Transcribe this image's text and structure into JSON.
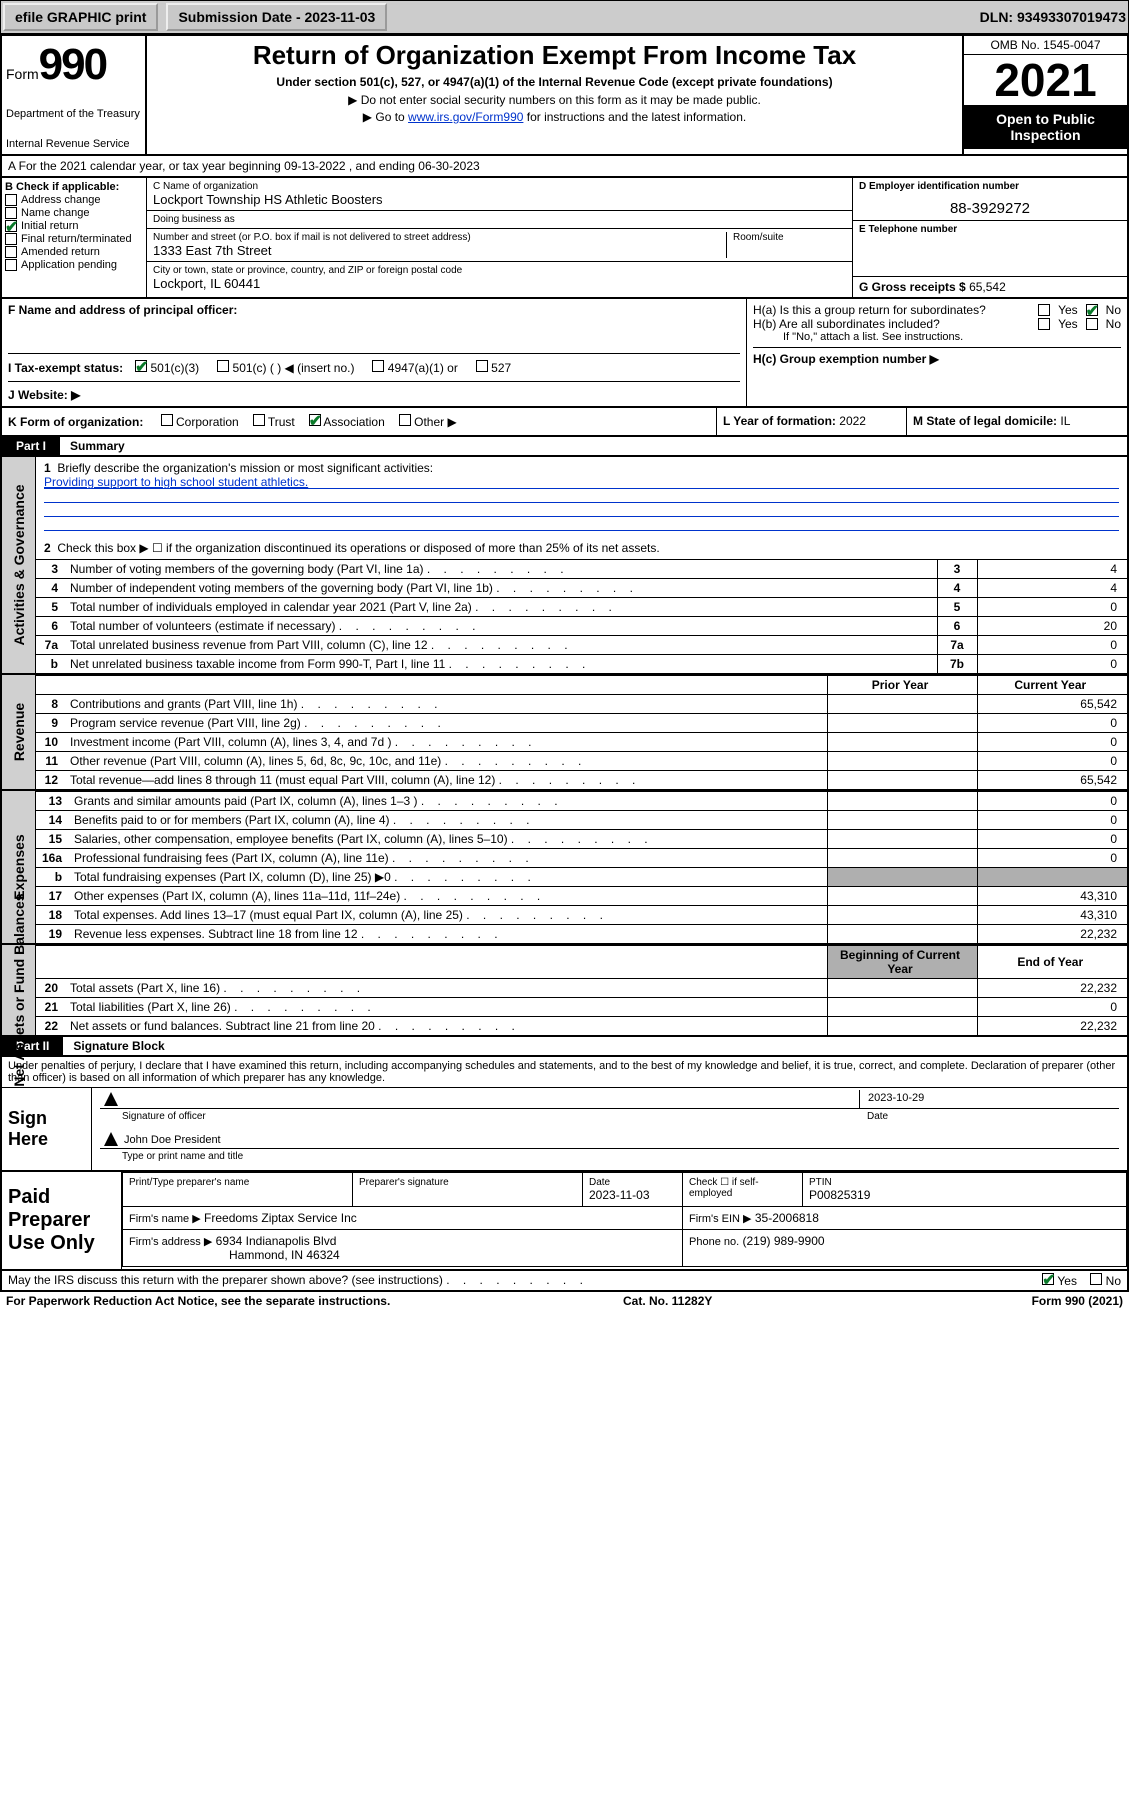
{
  "topbar": {
    "efile": "efile GRAPHIC print",
    "submission_label": "Submission Date - 2023-11-03",
    "dln": "DLN: 93493307019473"
  },
  "header": {
    "form_word": "Form",
    "form_num": "990",
    "dept": "Department of the Treasury",
    "irs": "Internal Revenue Service",
    "title": "Return of Organization Exempt From Income Tax",
    "sub": "Under section 501(c), 527, or 4947(a)(1) of the Internal Revenue Code (except private foundations)",
    "line1": "▶ Do not enter social security numbers on this form as it may be made public.",
    "line2_pre": "▶ Go to ",
    "line2_link": "www.irs.gov/Form990",
    "line2_post": " for instructions and the latest information.",
    "omb": "OMB No. 1545-0047",
    "year": "2021",
    "open": "Open to Public Inspection"
  },
  "line_a": "A For the 2021 calendar year, or tax year beginning 09-13-2022    , and ending 06-30-2023",
  "box_b": {
    "label": "B Check if applicable:",
    "items": [
      {
        "label": "Address change",
        "checked": false
      },
      {
        "label": "Name change",
        "checked": false
      },
      {
        "label": "Initial return",
        "checked": true
      },
      {
        "label": "Final return/terminated",
        "checked": false
      },
      {
        "label": "Amended return",
        "checked": false
      },
      {
        "label": "Application pending",
        "checked": false
      }
    ]
  },
  "box_c": {
    "name_label": "C Name of organization",
    "name": "Lockport Township HS Athletic Boosters",
    "dba_label": "Doing business as",
    "dba": "",
    "street_label": "Number and street (or P.O. box if mail is not delivered to street address)",
    "room_label": "Room/suite",
    "street": "1333 East 7th Street",
    "city_label": "City or town, state or province, country, and ZIP or foreign postal code",
    "city": "Lockport, IL  60441"
  },
  "box_d": {
    "label": "D Employer identification number",
    "value": "88-3929272"
  },
  "box_e": {
    "label": "E Telephone number",
    "value": ""
  },
  "box_g": {
    "label": "G Gross receipts $",
    "value": "65,542"
  },
  "box_f": {
    "label": "F Name and address of principal officer:",
    "value": ""
  },
  "box_h": {
    "ha": "H(a)  Is this a group return for subordinates?",
    "ha_yes": "Yes",
    "ha_no": "No",
    "ha_checked": "No",
    "hb": "H(b)  Are all subordinates included?",
    "hb_yes": "Yes",
    "hb_no": "No",
    "hb_note": "If \"No,\" attach a list. See instructions.",
    "hc": "H(c)  Group exemption number ▶"
  },
  "box_i": {
    "label": "I   Tax-exempt status:",
    "opts": [
      "501(c)(3)",
      "501(c) (  ) ◀ (insert no.)",
      "4947(a)(1) or",
      "527"
    ],
    "checked_index": 0
  },
  "box_j": {
    "label": "J   Website: ▶",
    "value": ""
  },
  "box_k": {
    "label": "K Form of organization:",
    "opts": [
      "Corporation",
      "Trust",
      "Association",
      "Other ▶"
    ],
    "checked_index": 2
  },
  "box_l": {
    "label": "L Year of formation:",
    "value": "2022"
  },
  "box_m": {
    "label": "M State of legal domicile:",
    "value": "IL"
  },
  "part1": {
    "header": "Part I",
    "title": "Summary",
    "q1_label": "Briefly describe the organization's mission or most significant activities:",
    "q1_text": "Providing support to high school student athletics.",
    "q2": "Check this box ▶ ☐  if the organization discontinued its operations or disposed of more than 25% of its net assets.",
    "governance_rows": [
      {
        "n": "1",
        "text": ""
      },
      {
        "n": "2",
        "text": ""
      },
      {
        "n": "3",
        "text": "Number of voting members of the governing body (Part VI, line 1a)",
        "box": "3",
        "val": "4"
      },
      {
        "n": "4",
        "text": "Number of independent voting members of the governing body (Part VI, line 1b)",
        "box": "4",
        "val": "4"
      },
      {
        "n": "5",
        "text": "Total number of individuals employed in calendar year 2021 (Part V, line 2a)",
        "box": "5",
        "val": "0"
      },
      {
        "n": "6",
        "text": "Total number of volunteers (estimate if necessary)",
        "box": "6",
        "val": "20"
      },
      {
        "n": "7a",
        "text": "Total unrelated business revenue from Part VIII, column (C), line 12",
        "box": "7a",
        "val": "0"
      },
      {
        "n": "b",
        "text": "Net unrelated business taxable income from Form 990-T, Part I, line 11",
        "box": "7b",
        "val": "0"
      }
    ],
    "col_prior": "Prior Year",
    "col_current": "Current Year",
    "col_begin": "Beginning of Current Year",
    "col_end": "End of Year",
    "revenue_rows": [
      {
        "n": "8",
        "text": "Contributions and grants (Part VIII, line 1h)",
        "prior": "",
        "curr": "65,542"
      },
      {
        "n": "9",
        "text": "Program service revenue (Part VIII, line 2g)",
        "prior": "",
        "curr": "0"
      },
      {
        "n": "10",
        "text": "Investment income (Part VIII, column (A), lines 3, 4, and 7d )",
        "prior": "",
        "curr": "0"
      },
      {
        "n": "11",
        "text": "Other revenue (Part VIII, column (A), lines 5, 6d, 8c, 9c, 10c, and 11e)",
        "prior": "",
        "curr": "0"
      },
      {
        "n": "12",
        "text": "Total revenue—add lines 8 through 11 (must equal Part VIII, column (A), line 12)",
        "prior": "",
        "curr": "65,542"
      }
    ],
    "expense_rows": [
      {
        "n": "13",
        "text": "Grants and similar amounts paid (Part IX, column (A), lines 1–3 )",
        "prior": "",
        "curr": "0"
      },
      {
        "n": "14",
        "text": "Benefits paid to or for members (Part IX, column (A), line 4)",
        "prior": "",
        "curr": "0"
      },
      {
        "n": "15",
        "text": "Salaries, other compensation, employee benefits (Part IX, column (A), lines 5–10)",
        "prior": "",
        "curr": "0"
      },
      {
        "n": "16a",
        "text": "Professional fundraising fees (Part IX, column (A), line 11e)",
        "prior": "",
        "curr": "0"
      },
      {
        "n": "b",
        "text": "Total fundraising expenses (Part IX, column (D), line 25) ▶0",
        "prior": "shade",
        "curr": "shade"
      },
      {
        "n": "17",
        "text": "Other expenses (Part IX, column (A), lines 11a–11d, 11f–24e)",
        "prior": "",
        "curr": "43,310"
      },
      {
        "n": "18",
        "text": "Total expenses. Add lines 13–17 (must equal Part IX, column (A), line 25)",
        "prior": "",
        "curr": "43,310"
      },
      {
        "n": "19",
        "text": "Revenue less expenses. Subtract line 18 from line 12",
        "prior": "",
        "curr": "22,232"
      }
    ],
    "net_rows": [
      {
        "n": "20",
        "text": "Total assets (Part X, line 16)",
        "prior": "",
        "curr": "22,232"
      },
      {
        "n": "21",
        "text": "Total liabilities (Part X, line 26)",
        "prior": "",
        "curr": "0"
      },
      {
        "n": "22",
        "text": "Net assets or fund balances. Subtract line 21 from line 20",
        "prior": "",
        "curr": "22,232"
      }
    ]
  },
  "part2": {
    "header": "Part II",
    "title": "Signature Block",
    "declaration": "Under penalties of perjury, I declare that I have examined this return, including accompanying schedules and statements, and to the best of my knowledge and belief, it is true, correct, and complete. Declaration of preparer (other than officer) is based on all information of which preparer has any knowledge.",
    "sign_here": "Sign Here",
    "sig_officer_label": "Signature of officer",
    "sig_date": "2023-10-29",
    "sig_date_label": "Date",
    "sig_name": "John Doe  President",
    "sig_name_label": "Type or print name and title",
    "paid_label": "Paid Preparer Use Only",
    "prep_headers": [
      "Print/Type preparer's name",
      "Preparer's signature",
      "Date",
      "Check ☐ if self-employed",
      "PTIN"
    ],
    "prep_row": [
      "",
      "",
      "2023-11-03",
      "",
      "P00825319"
    ],
    "firm_name_label": "Firm's name    ▶",
    "firm_name": "Freedoms Ziptax Service Inc",
    "firm_ein_label": "Firm's EIN ▶",
    "firm_ein": "35-2006818",
    "firm_addr_label": "Firm's address ▶",
    "firm_addr1": "6934 Indianapolis Blvd",
    "firm_addr2": "Hammond, IN  46324",
    "firm_phone_label": "Phone no.",
    "firm_phone": "(219) 989-9900",
    "may_irs": "May the IRS discuss this return with the preparer shown above? (see instructions)",
    "may_yes": "Yes",
    "may_no": "No",
    "may_checked": "Yes"
  },
  "footer": {
    "paperwork": "For Paperwork Reduction Act Notice, see the separate instructions.",
    "cat": "Cat. No. 11282Y",
    "form": "Form 990 (2021)"
  },
  "vstrips": {
    "gov": "Activities & Governance",
    "rev": "Revenue",
    "exp": "Expenses",
    "net": "Net Assets or Fund Balances"
  }
}
